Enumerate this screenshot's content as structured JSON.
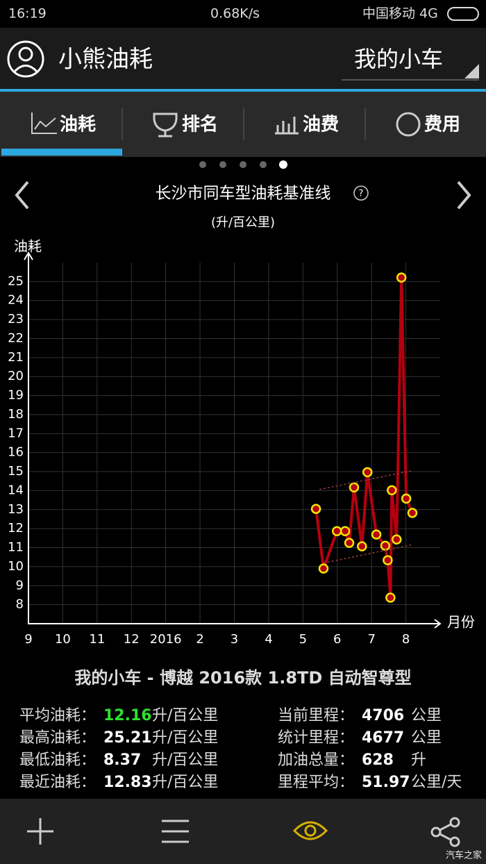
{
  "status_bar": {
    "time": "16:19",
    "speed": "0.68K/s",
    "carrier": "中国移动 4G"
  },
  "header": {
    "title": "小熊油耗",
    "car_selector": "我的小车"
  },
  "tabs": [
    "油耗",
    "排名",
    "油费",
    "费用"
  ],
  "chart_data": {
    "type": "line",
    "title": "长沙市同车型油耗基准线",
    "subtitle": "(升/百公里)",
    "y_label": "油耗",
    "x_label": "月份",
    "xlim": [
      0,
      12
    ],
    "xticks": [
      {
        "value": 0,
        "label": "9"
      },
      {
        "value": 1,
        "label": "10"
      },
      {
        "value": 2,
        "label": "11"
      },
      {
        "value": 3,
        "label": "12"
      },
      {
        "value": 4,
        "label": "2016"
      },
      {
        "value": 5,
        "label": "2"
      },
      {
        "value": 6,
        "label": "3"
      },
      {
        "value": 7,
        "label": "4"
      },
      {
        "value": 8,
        "label": "5"
      },
      {
        "value": 9,
        "label": "6"
      },
      {
        "value": 10,
        "label": "7"
      },
      {
        "value": 11,
        "label": "8"
      }
    ],
    "ylim": [
      7,
      26
    ],
    "yticks": [
      8,
      9,
      10,
      11,
      12,
      13,
      14,
      15,
      16,
      17,
      18,
      19,
      20,
      21,
      22,
      23,
      24,
      25
    ],
    "grid": true,
    "series": [
      {
        "color": "#b5000f",
        "marker_color": "#f2e600",
        "dashed": false,
        "x": [
          8.38,
          8.6,
          8.99,
          9.23,
          9.35,
          9.49,
          9.72,
          9.88,
          10.14,
          10.4,
          10.47,
          10.55,
          10.59,
          10.73,
          10.87,
          11.01,
          11.19
        ],
        "values": [
          13.04,
          9.9,
          11.87,
          11.87,
          11.25,
          14.17,
          11.07,
          14.97,
          11.69,
          11.1,
          10.34,
          8.37,
          14.02,
          11.43,
          25.21,
          13.58,
          12.83
        ]
      },
      {
        "color": "#9a3b3b",
        "dashed": true,
        "x": [
          8.48,
          11.15
        ],
        "values": [
          14.06,
          15.04
        ]
      },
      {
        "color": "#9a3b3b",
        "dashed": true,
        "x": [
          8.6,
          11.15
        ],
        "values": [
          10.19,
          11.14
        ]
      }
    ]
  },
  "car_name": "我的小车 - 博越 2016款 1.8TD 自动智尊型",
  "stats": {
    "left": [
      {
        "label": "平均油耗：",
        "value": 12.16,
        "unit": "升/百公里"
      },
      {
        "label": "最高油耗：",
        "value": 25.21,
        "unit": "升/百公里"
      },
      {
        "label": "最低油耗：",
        "value": 8.37,
        "unit": "升/百公里"
      },
      {
        "label": "最近油耗：",
        "value": 12.83,
        "unit": "升/百公里"
      }
    ],
    "right": [
      {
        "label": "当前里程：",
        "value": 4706,
        "unit": "公里"
      },
      {
        "label": "统计里程：",
        "value": 4677,
        "unit": "公里"
      },
      {
        "label": "加油总量：",
        "value": 628,
        "unit": "升"
      },
      {
        "label": "里程平均：",
        "value": 51.97,
        "unit": "公里/天"
      }
    ]
  },
  "watermark": "汽车之家"
}
